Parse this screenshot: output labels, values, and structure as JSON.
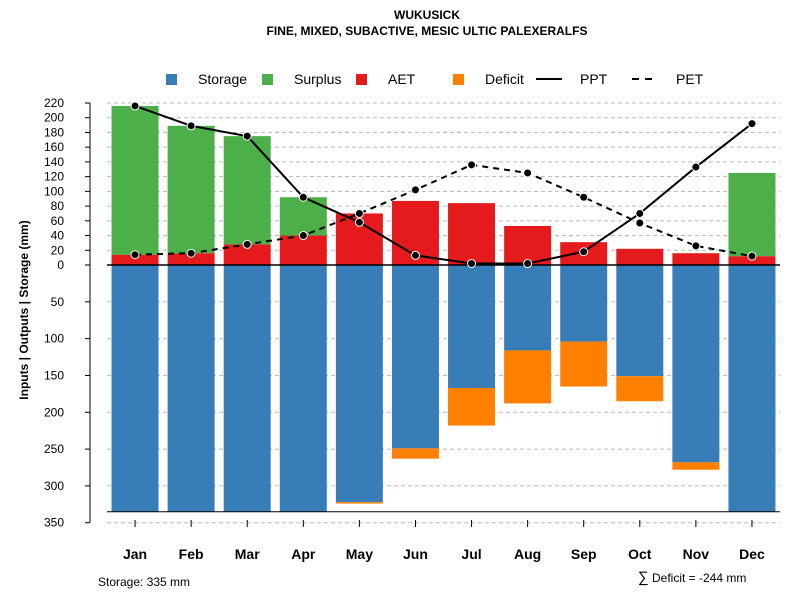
{
  "chart_data": {
    "type": "bar",
    "title": "WUKUSICK",
    "subtitle": "FINE, MIXED, SUBACTIVE, MESIC ULTIC PALEXERALFS",
    "ylabel": "Inputs | Outputs | Storage    (mm)",
    "categories": [
      "Jan",
      "Feb",
      "Mar",
      "Apr",
      "May",
      "Jun",
      "Jul",
      "Aug",
      "Sep",
      "Oct",
      "Nov",
      "Dec"
    ],
    "ylim_top": [
      0,
      220
    ],
    "ylim_bottom": [
      0,
      350
    ],
    "yticks_top": [
      0,
      20,
      40,
      60,
      80,
      100,
      120,
      140,
      160,
      180,
      200,
      220
    ],
    "yticks_bottom": [
      50,
      100,
      150,
      200,
      250,
      300,
      350
    ],
    "legend": [
      {
        "name": "Storage",
        "kind": "box",
        "color": "#377EB8"
      },
      {
        "name": "Surplus",
        "kind": "box",
        "color": "#4DAF4A"
      },
      {
        "name": "AET",
        "kind": "box",
        "color": "#E41A1C"
      },
      {
        "name": "Deficit",
        "kind": "box",
        "color": "#FF7F00"
      },
      {
        "name": "PPT",
        "kind": "solid"
      },
      {
        "name": "PET",
        "kind": "dashed"
      }
    ],
    "series": {
      "PPT": [
        216,
        189,
        175,
        92,
        58,
        13,
        2,
        2,
        18,
        70,
        133,
        192
      ],
      "PET": [
        14,
        16,
        28,
        40,
        70,
        102,
        136,
        125,
        92,
        57,
        26,
        12
      ],
      "AET": [
        14,
        16,
        28,
        40,
        70,
        87,
        84,
        53,
        31,
        22,
        16,
        12
      ],
      "Surplus": [
        202,
        173,
        147,
        52,
        0,
        0,
        0,
        0,
        0,
        0,
        0,
        113
      ],
      "Storage": [
        335,
        335,
        335,
        335,
        322,
        249,
        167,
        116,
        104,
        151,
        268,
        335
      ],
      "Deficit": [
        0,
        0,
        0,
        0,
        2,
        14,
        51,
        72,
        61,
        34,
        10,
        0
      ]
    },
    "annotations": {
      "storage": "Storage: 335 mm",
      "deficit_symbol": "∑",
      "deficit": "Deficit = -244 mm"
    }
  }
}
